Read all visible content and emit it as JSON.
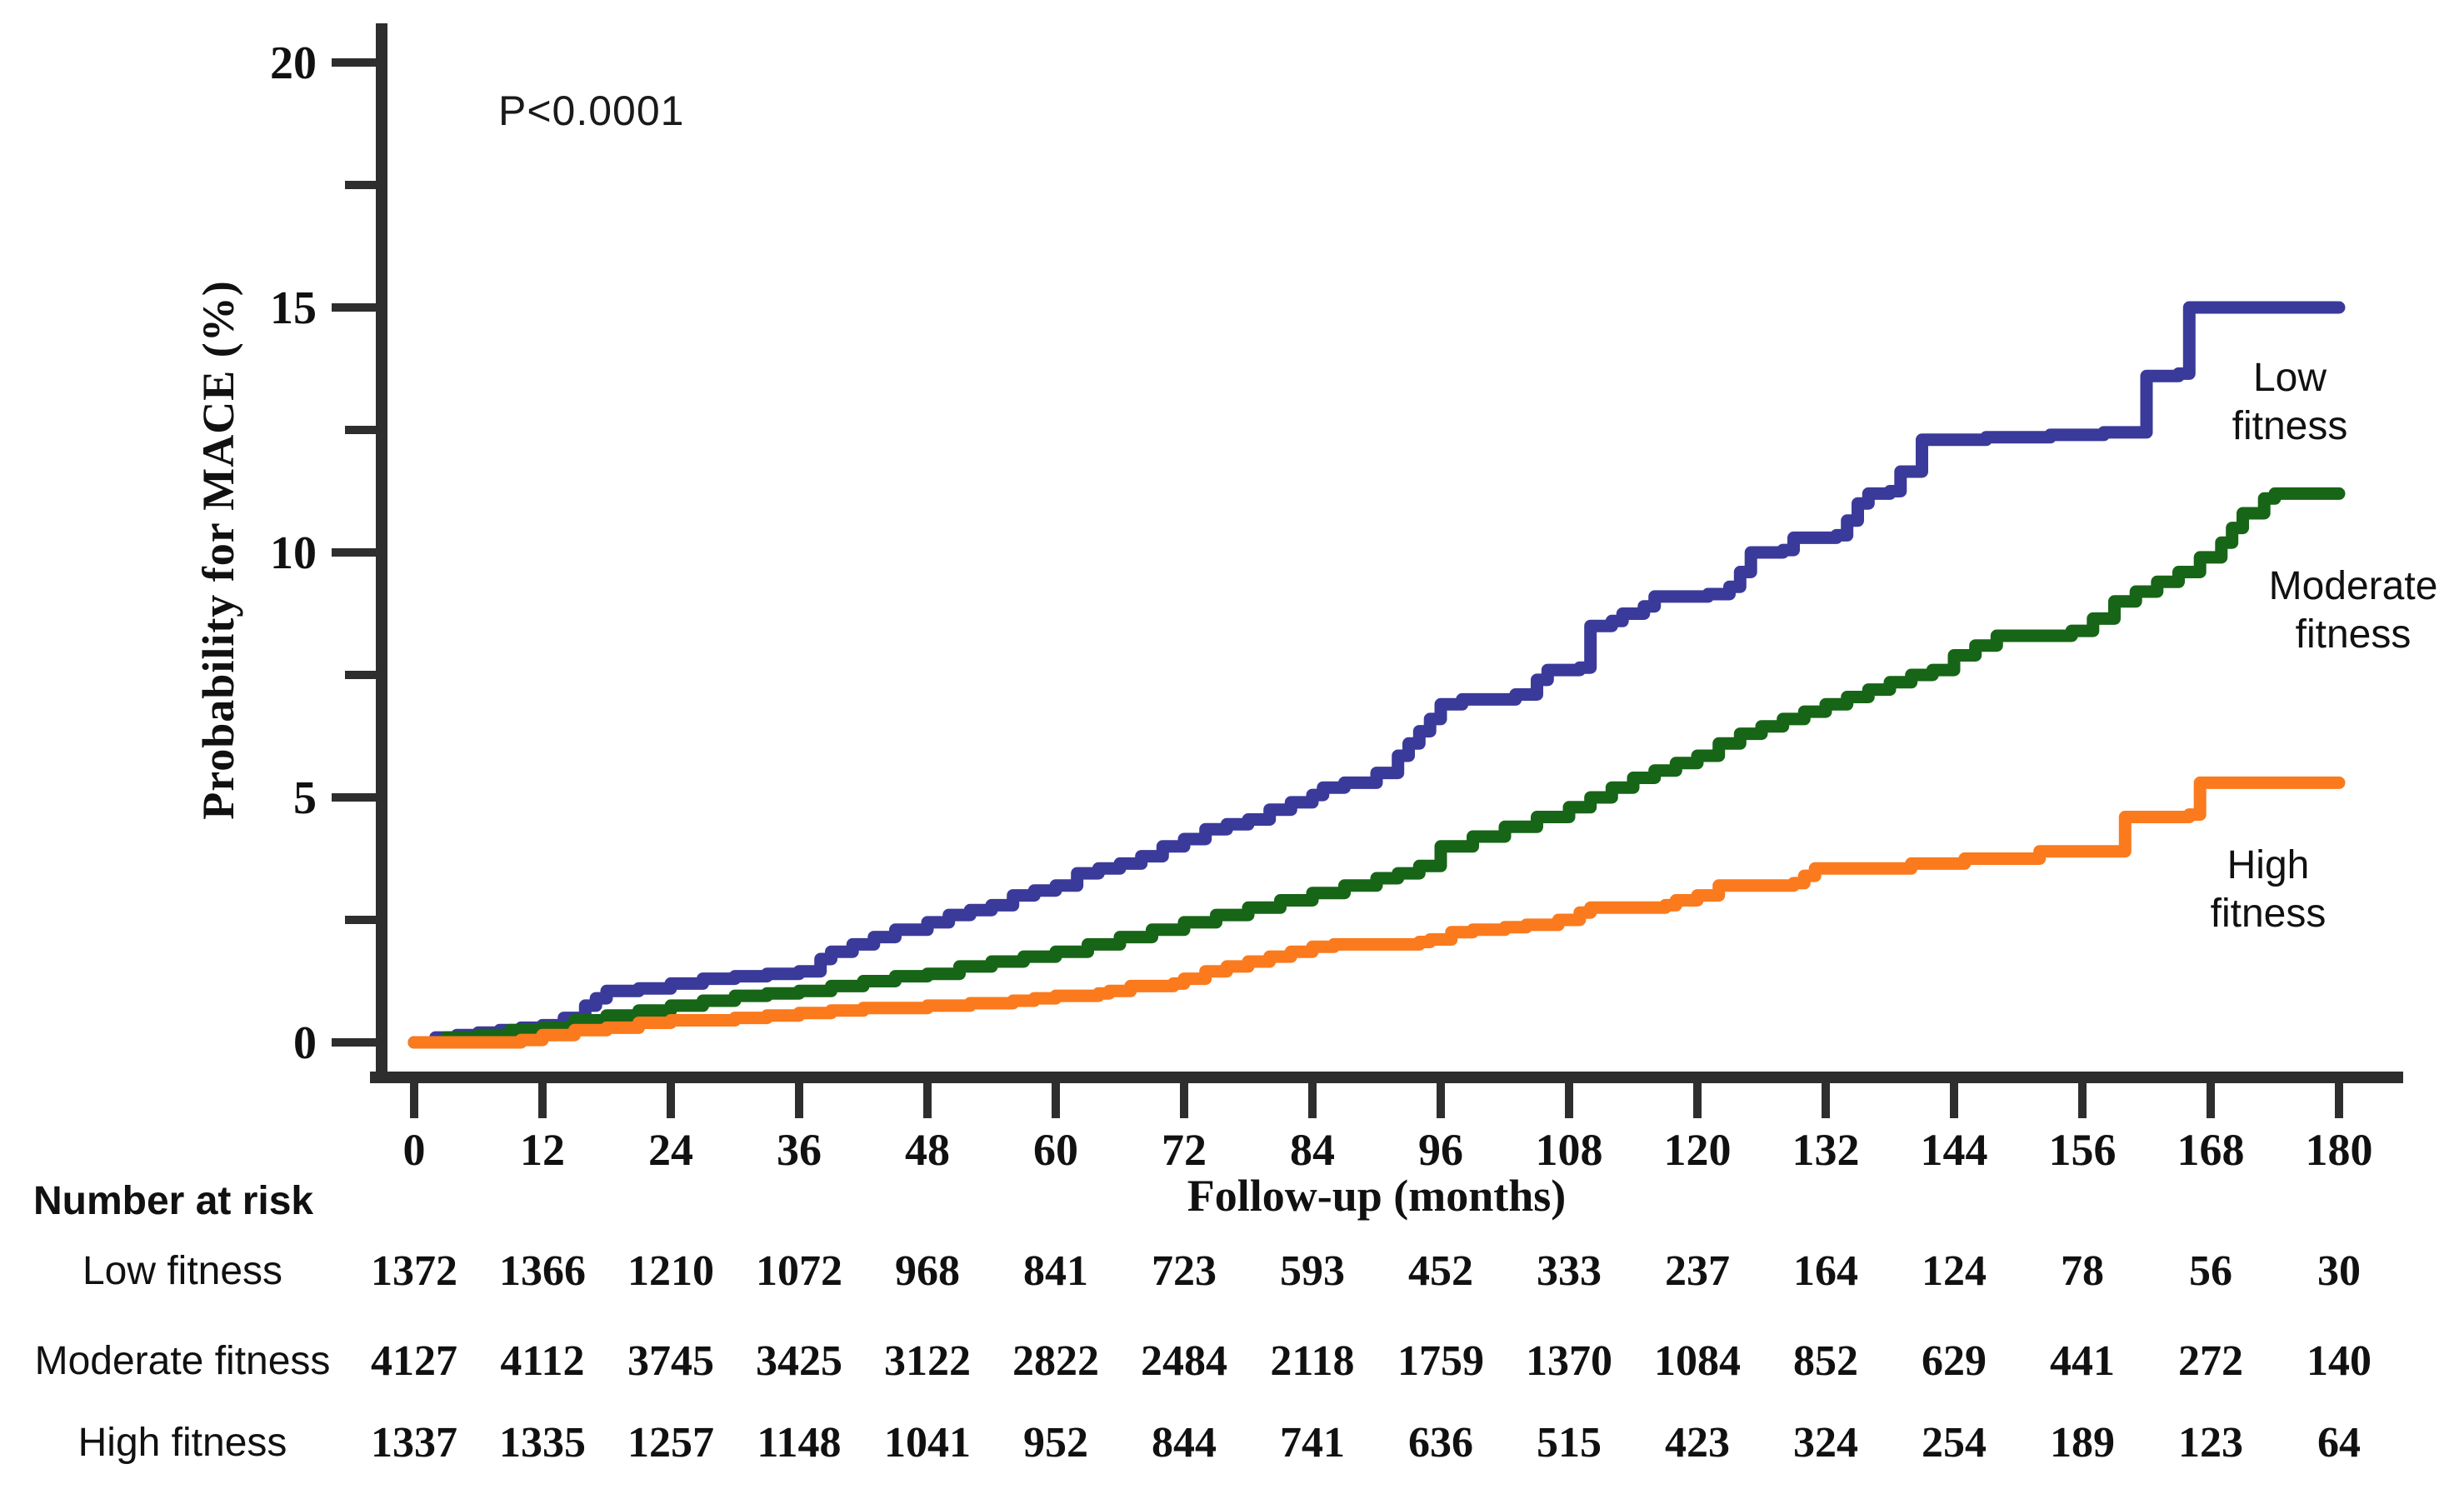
{
  "annotation": {
    "p_value": "P<0.0001"
  },
  "chart_data": {
    "type": "line",
    "subtype": "kaplan-meier-cumulative-incidence-steps",
    "title": "",
    "xlabel": "Follow-up (months)",
    "ylabel": "Probability for MACE (%)",
    "xlim": [
      0,
      180
    ],
    "ylim": [
      0,
      20
    ],
    "x_ticks": [
      0,
      12,
      24,
      36,
      48,
      60,
      72,
      84,
      96,
      108,
      120,
      132,
      144,
      156,
      168,
      180
    ],
    "y_ticks": [
      0,
      5,
      10,
      15,
      20
    ],
    "y_minor_ticks": [
      2.5,
      7.5,
      12.5,
      17.5
    ],
    "grid": false,
    "legend_position": "labels-at-line-ends",
    "axis_color": "#2e2e2e",
    "series": [
      {
        "name": "Low fitness",
        "label_lines": [
          "Low",
          "fitness"
        ],
        "color": "#3a3a9b",
        "points": [
          [
            0,
            0
          ],
          [
            2,
            0.1
          ],
          [
            4,
            0.15
          ],
          [
            6,
            0.2
          ],
          [
            8,
            0.25
          ],
          [
            10,
            0.3
          ],
          [
            12,
            0.35
          ],
          [
            14,
            0.5
          ],
          [
            16,
            0.75
          ],
          [
            17,
            0.9
          ],
          [
            18,
            1.05
          ],
          [
            21,
            1.1
          ],
          [
            24,
            1.2
          ],
          [
            27,
            1.3
          ],
          [
            30,
            1.35
          ],
          [
            33,
            1.4
          ],
          [
            36,
            1.45
          ],
          [
            38,
            1.7
          ],
          [
            39,
            1.85
          ],
          [
            41,
            2.0
          ],
          [
            43,
            2.15
          ],
          [
            45,
            2.3
          ],
          [
            48,
            2.45
          ],
          [
            50,
            2.6
          ],
          [
            52,
            2.7
          ],
          [
            54,
            2.8
          ],
          [
            56,
            3.0
          ],
          [
            58,
            3.1
          ],
          [
            60,
            3.2
          ],
          [
            62,
            3.45
          ],
          [
            64,
            3.55
          ],
          [
            66,
            3.65
          ],
          [
            68,
            3.8
          ],
          [
            70,
            4.0
          ],
          [
            72,
            4.15
          ],
          [
            74,
            4.35
          ],
          [
            76,
            4.45
          ],
          [
            78,
            4.55
          ],
          [
            80,
            4.75
          ],
          [
            82,
            4.9
          ],
          [
            84,
            5.05
          ],
          [
            85,
            5.2
          ],
          [
            87,
            5.3
          ],
          [
            90,
            5.5
          ],
          [
            92,
            5.85
          ],
          [
            93,
            6.1
          ],
          [
            94,
            6.35
          ],
          [
            95,
            6.6
          ],
          [
            96,
            6.9
          ],
          [
            98,
            7.0
          ],
          [
            103,
            7.1
          ],
          [
            105,
            7.4
          ],
          [
            106,
            7.6
          ],
          [
            109,
            7.65
          ],
          [
            110,
            8.5
          ],
          [
            112,
            8.6
          ],
          [
            113,
            8.75
          ],
          [
            115,
            8.9
          ],
          [
            116,
            9.1
          ],
          [
            121,
            9.15
          ],
          [
            123,
            9.3
          ],
          [
            124,
            9.6
          ],
          [
            125,
            10.0
          ],
          [
            128,
            10.05
          ],
          [
            129,
            10.3
          ],
          [
            133,
            10.35
          ],
          [
            134,
            10.65
          ],
          [
            135,
            11.0
          ],
          [
            136,
            11.2
          ],
          [
            138,
            11.25
          ],
          [
            139,
            11.65
          ],
          [
            141,
            12.3
          ],
          [
            147,
            12.35
          ],
          [
            153,
            12.4
          ],
          [
            158,
            12.45
          ],
          [
            162,
            13.6
          ],
          [
            165,
            13.65
          ],
          [
            166,
            15.0
          ],
          [
            180,
            15.0
          ]
        ]
      },
      {
        "name": "Moderate fitness",
        "label_lines": [
          "Moderate",
          "fitness"
        ],
        "color": "#176517",
        "points": [
          [
            0,
            0
          ],
          [
            3,
            0.1
          ],
          [
            6,
            0.15
          ],
          [
            9,
            0.25
          ],
          [
            12,
            0.3
          ],
          [
            15,
            0.45
          ],
          [
            18,
            0.55
          ],
          [
            21,
            0.65
          ],
          [
            24,
            0.75
          ],
          [
            27,
            0.85
          ],
          [
            30,
            0.95
          ],
          [
            33,
            1.0
          ],
          [
            36,
            1.05
          ],
          [
            39,
            1.15
          ],
          [
            42,
            1.25
          ],
          [
            45,
            1.35
          ],
          [
            48,
            1.4
          ],
          [
            51,
            1.55
          ],
          [
            54,
            1.65
          ],
          [
            57,
            1.75
          ],
          [
            60,
            1.85
          ],
          [
            63,
            2.0
          ],
          [
            66,
            2.15
          ],
          [
            69,
            2.3
          ],
          [
            72,
            2.45
          ],
          [
            75,
            2.6
          ],
          [
            78,
            2.75
          ],
          [
            81,
            2.9
          ],
          [
            84,
            3.05
          ],
          [
            87,
            3.2
          ],
          [
            90,
            3.35
          ],
          [
            92,
            3.45
          ],
          [
            94,
            3.6
          ],
          [
            96,
            4.0
          ],
          [
            99,
            4.2
          ],
          [
            102,
            4.4
          ],
          [
            105,
            4.6
          ],
          [
            108,
            4.8
          ],
          [
            110,
            5.0
          ],
          [
            112,
            5.2
          ],
          [
            114,
            5.4
          ],
          [
            116,
            5.55
          ],
          [
            118,
            5.7
          ],
          [
            120,
            5.85
          ],
          [
            122,
            6.1
          ],
          [
            124,
            6.3
          ],
          [
            126,
            6.45
          ],
          [
            128,
            6.6
          ],
          [
            130,
            6.75
          ],
          [
            132,
            6.9
          ],
          [
            134,
            7.05
          ],
          [
            136,
            7.2
          ],
          [
            138,
            7.35
          ],
          [
            140,
            7.5
          ],
          [
            142,
            7.6
          ],
          [
            144,
            7.9
          ],
          [
            146,
            8.1
          ],
          [
            148,
            8.3
          ],
          [
            155,
            8.4
          ],
          [
            157,
            8.65
          ],
          [
            159,
            9.0
          ],
          [
            161,
            9.2
          ],
          [
            163,
            9.4
          ],
          [
            165,
            9.6
          ],
          [
            167,
            9.9
          ],
          [
            169,
            10.2
          ],
          [
            170,
            10.5
          ],
          [
            171,
            10.8
          ],
          [
            173,
            11.1
          ],
          [
            174,
            11.2
          ],
          [
            180,
            11.2
          ]
        ]
      },
      {
        "name": "High fitness",
        "label_lines": [
          "High",
          "fitness"
        ],
        "color": "#fb7a1d",
        "points": [
          [
            0,
            0
          ],
          [
            10,
            0.05
          ],
          [
            12,
            0.15
          ],
          [
            15,
            0.25
          ],
          [
            18,
            0.3
          ],
          [
            21,
            0.4
          ],
          [
            24,
            0.45
          ],
          [
            30,
            0.5
          ],
          [
            33,
            0.55
          ],
          [
            36,
            0.6
          ],
          [
            39,
            0.65
          ],
          [
            42,
            0.7
          ],
          [
            48,
            0.75
          ],
          [
            52,
            0.8
          ],
          [
            56,
            0.85
          ],
          [
            58,
            0.9
          ],
          [
            60,
            0.95
          ],
          [
            64,
            1.0
          ],
          [
            65,
            1.05
          ],
          [
            67,
            1.15
          ],
          [
            71,
            1.2
          ],
          [
            72,
            1.3
          ],
          [
            74,
            1.45
          ],
          [
            76,
            1.55
          ],
          [
            78,
            1.65
          ],
          [
            80,
            1.75
          ],
          [
            82,
            1.85
          ],
          [
            84,
            1.95
          ],
          [
            86,
            2.0
          ],
          [
            94,
            2.05
          ],
          [
            95,
            2.1
          ],
          [
            97,
            2.25
          ],
          [
            99,
            2.3
          ],
          [
            102,
            2.35
          ],
          [
            104,
            2.4
          ],
          [
            107,
            2.5
          ],
          [
            109,
            2.65
          ],
          [
            110,
            2.75
          ],
          [
            117,
            2.8
          ],
          [
            118,
            2.9
          ],
          [
            120,
            3.0
          ],
          [
            122,
            3.2
          ],
          [
            129,
            3.25
          ],
          [
            130,
            3.4
          ],
          [
            131,
            3.55
          ],
          [
            140,
            3.65
          ],
          [
            145,
            3.75
          ],
          [
            152,
            3.9
          ],
          [
            160,
            4.6
          ],
          [
            166,
            4.65
          ],
          [
            167,
            5.3
          ],
          [
            180,
            5.3
          ]
        ]
      }
    ]
  },
  "risk_table": {
    "title": "Number at risk",
    "time_points": [
      0,
      12,
      24,
      36,
      48,
      60,
      72,
      84,
      96,
      108,
      120,
      132,
      144,
      156,
      168,
      180
    ],
    "rows": [
      {
        "label": "Low fitness",
        "values": [
          1372,
          1366,
          1210,
          1072,
          968,
          841,
          723,
          593,
          452,
          333,
          237,
          164,
          124,
          78,
          56,
          30
        ]
      },
      {
        "label": "Moderate fitness",
        "values": [
          4127,
          4112,
          3745,
          3425,
          3122,
          2822,
          2484,
          2118,
          1759,
          1370,
          1084,
          852,
          629,
          441,
          272,
          140
        ]
      },
      {
        "label": "High fitness",
        "values": [
          1337,
          1335,
          1257,
          1148,
          1041,
          952,
          844,
          741,
          636,
          515,
          423,
          324,
          254,
          189,
          123,
          64
        ]
      }
    ]
  }
}
